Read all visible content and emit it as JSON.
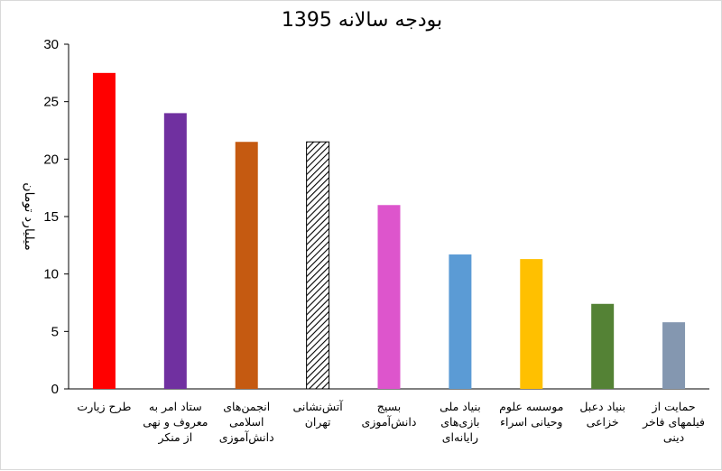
{
  "chart_data": {
    "type": "bar",
    "title": "بودجه سالانه 1395",
    "xlabel": "",
    "ylabel": "میلیارد تومان",
    "ylim": [
      0,
      30
    ],
    "yticks": [
      0,
      5,
      10,
      15,
      20,
      25,
      30
    ],
    "grid": false,
    "legend": "none",
    "categories": [
      [
        "طرح زیارت"
      ],
      [
        "ستاد امر به",
        "معروف و نهی",
        "از منکر"
      ],
      [
        "انجمن‌های",
        "اسلامی",
        "دانش‌آموزی"
      ],
      [
        "آتش‌نشانی",
        "تهران"
      ],
      [
        "بسیج",
        "دانش‌آموزی"
      ],
      [
        "بنیاد ملی",
        "بازی‌های",
        "رایانه‌ای"
      ],
      [
        "موسسه علوم",
        "وحیانی اسراء"
      ],
      [
        "بنیاد دعبل",
        "خزاعی"
      ],
      [
        "حمایت از",
        "فیلمهای فاخر",
        "دینی"
      ]
    ],
    "values": [
      27.5,
      24.0,
      21.5,
      21.5,
      16.0,
      11.7,
      11.3,
      7.4,
      5.8
    ],
    "colors": [
      "#ff0000",
      "#7030a0",
      "#c55a11",
      "hatched",
      "#dd55cc",
      "#5b9bd5",
      "#ffc000",
      "#548235",
      "#8497b0"
    ]
  }
}
